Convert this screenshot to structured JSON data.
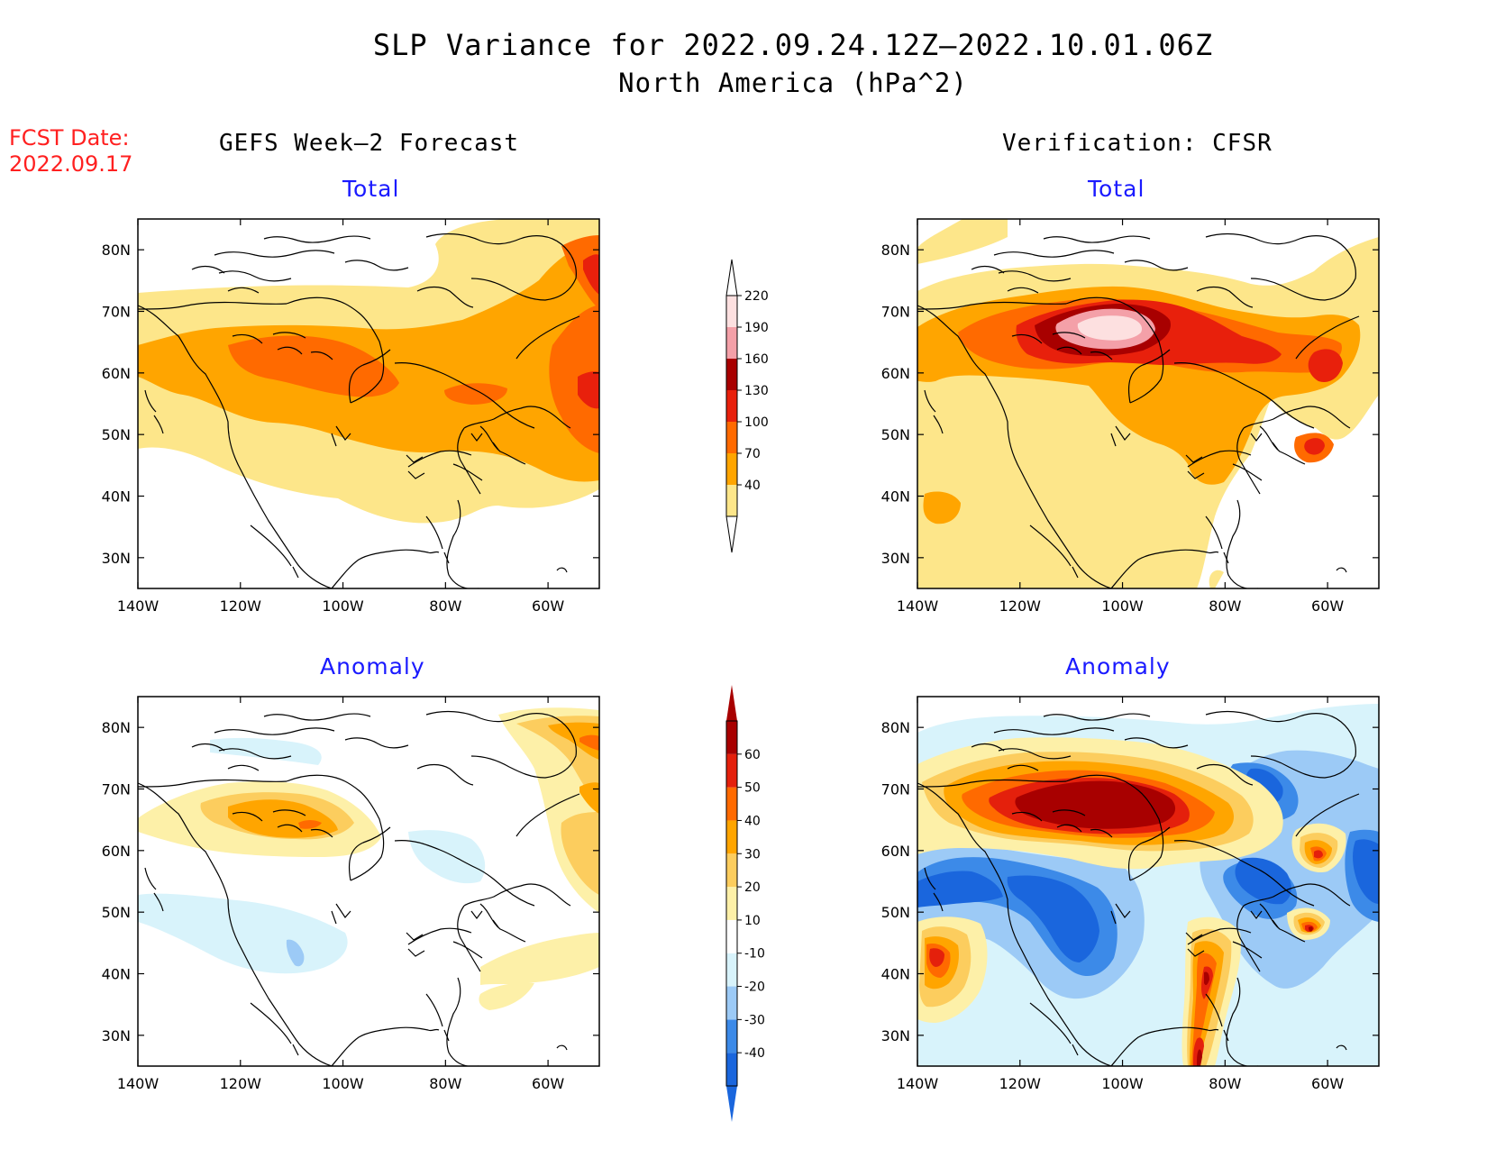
{
  "title": "SLP Variance for 2022.09.24.12Z–2022.10.01.06Z",
  "subtitle": "North America (hPa^2)",
  "fcst_date_label": "FCST Date:",
  "fcst_date_value": "2022.09.17",
  "left_header": "GEFS Week–2 Forecast",
  "right_header": "Verification: CFSR",
  "panels": {
    "top_left": {
      "title": "Total"
    },
    "top_right": {
      "title": "Total"
    },
    "bottom_left": {
      "title": "Anomaly"
    },
    "bottom_right": {
      "title": "Anomaly"
    }
  },
  "axes": {
    "x_ticks": [
      "140W",
      "120W",
      "100W",
      "80W",
      "60W"
    ],
    "y_ticks": [
      "80N",
      "70N",
      "60N",
      "50N",
      "40N",
      "30N"
    ]
  },
  "colorbar_total": {
    "labels": [
      "40",
      "70",
      "100",
      "130",
      "160",
      "190",
      "220"
    ],
    "colors": [
      "#fde68a",
      "#ffa500",
      "#ff6a00",
      "#e8200c",
      "#a80000",
      "#f4a0a8",
      "#fde0e0"
    ]
  },
  "colorbar_anomaly": {
    "labels": [
      "-40",
      "-30",
      "-20",
      "-10",
      "10",
      "20",
      "30",
      "40",
      "50",
      "60"
    ],
    "colors": [
      "#1a66dd",
      "#3c8ae8",
      "#9ccaf6",
      "#d8f3fb",
      "#ffffff",
      "#fdf0a8",
      "#fccd5e",
      "#ffa500",
      "#ff6a00",
      "#e4200c",
      "#a80000"
    ]
  },
  "colors": {
    "title_fcst": "#ff2020",
    "panel_title": "#1a1aff"
  }
}
